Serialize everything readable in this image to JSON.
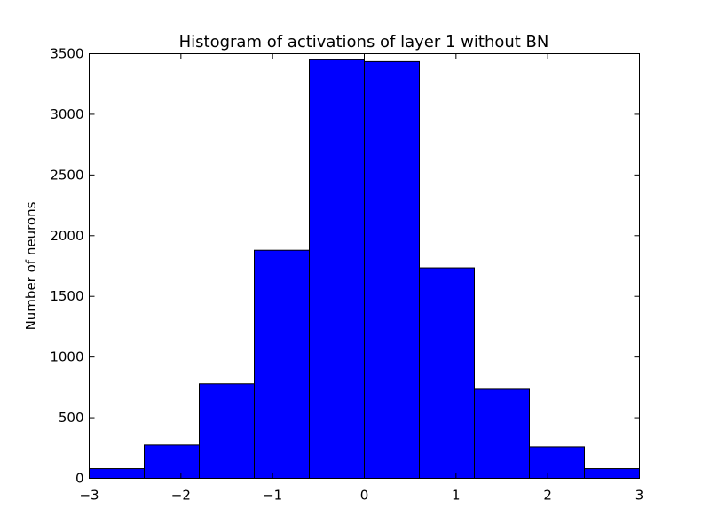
{
  "chart_data": {
    "type": "bar",
    "title": "Histogram of activations of layer 1  without BN",
    "xlabel": "",
    "ylabel": "Number of neurons",
    "bin_edges": [
      -3,
      -2.4,
      -1.8,
      -1.2,
      -0.6,
      0,
      0.6,
      1.2,
      1.8,
      2.4,
      3
    ],
    "values": [
      80,
      275,
      780,
      1880,
      3450,
      3435,
      1735,
      735,
      260,
      80
    ],
    "xlim": [
      -3,
      3
    ],
    "ylim": [
      0,
      3500
    ],
    "x_ticks": [
      -3,
      -2,
      -1,
      0,
      1,
      2,
      3
    ],
    "x_tick_labels": [
      "−3",
      "−2",
      "−1",
      "0",
      "1",
      "2",
      "3"
    ],
    "y_ticks": [
      0,
      500,
      1000,
      1500,
      2000,
      2500,
      3000,
      3500
    ],
    "y_tick_labels": [
      "0",
      "500",
      "1000",
      "1500",
      "2000",
      "2500",
      "3000",
      "3500"
    ],
    "bar_color": "#0000ff",
    "grid": false,
    "legend": "none"
  }
}
